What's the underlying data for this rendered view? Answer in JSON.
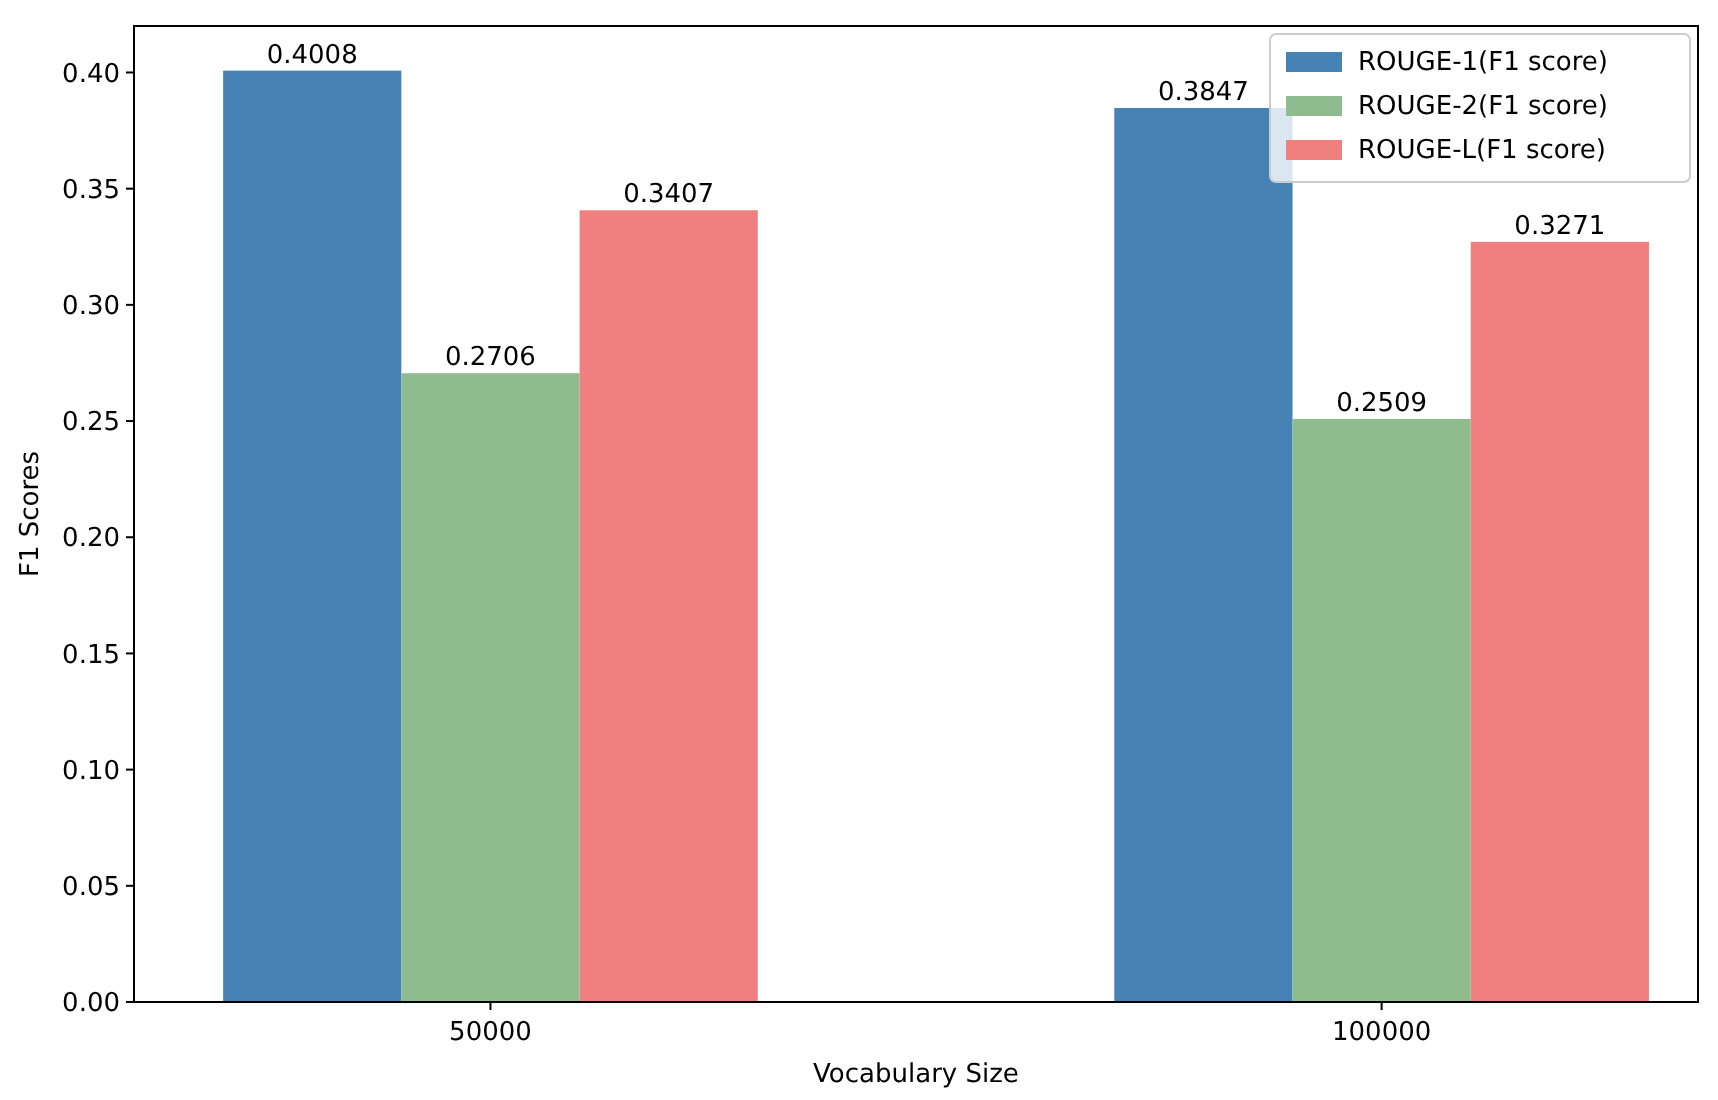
{
  "chart_data": {
    "type": "bar",
    "xlabel": "Vocabulary Size",
    "ylabel": "F1 Scores",
    "categories": [
      "50000",
      "100000"
    ],
    "series": [
      {
        "name": "ROUGE-1(F1 score)",
        "color": "#4682b4",
        "values": [
          0.4008,
          0.3847
        ]
      },
      {
        "name": "ROUGE-2(F1 score)",
        "color": "#8fbc8f",
        "values": [
          0.2706,
          0.2509
        ]
      },
      {
        "name": "ROUGE-L(F1 score)",
        "color": "#f08080",
        "values": [
          0.3407,
          0.3271
        ]
      }
    ],
    "ylim": [
      0,
      0.42
    ],
    "yticks": [
      {
        "value": 0,
        "label": "0.00"
      },
      {
        "value": 0.05,
        "label": "0.05"
      },
      {
        "value": 0.1,
        "label": "0.10"
      },
      {
        "value": 0.15,
        "label": "0.15"
      },
      {
        "value": 0.2,
        "label": "0.20"
      },
      {
        "value": 0.25,
        "label": "0.25"
      },
      {
        "value": 0.3,
        "label": "0.30"
      },
      {
        "value": 0.35,
        "label": "0.35"
      },
      {
        "value": 0.4,
        "label": "0.40"
      }
    ],
    "data_labels": true,
    "legend": "top right",
    "grid": false
  }
}
